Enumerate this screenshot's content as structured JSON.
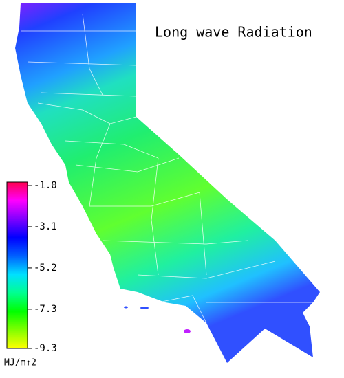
{
  "title": "Long wave Radiation",
  "colorbar": {
    "unit": "MJ/m↑2",
    "clim": [
      -9.3,
      -1.0
    ],
    "ticks": [
      {
        "value": -1.0,
        "label": "-1.0"
      },
      {
        "value": -3.1,
        "label": "-3.1"
      },
      {
        "value": -5.2,
        "label": "-5.2"
      },
      {
        "value": -7.3,
        "label": "-7.3"
      },
      {
        "value": -9.3,
        "label": "-9.3"
      }
    ],
    "colors": [
      "#ffff00",
      "#80ff00",
      "#00ff00",
      "#00ff90",
      "#00e0ff",
      "#0060ff",
      "#0000ff",
      "#8000ff",
      "#ff00ff",
      "#ff0050"
    ]
  }
}
